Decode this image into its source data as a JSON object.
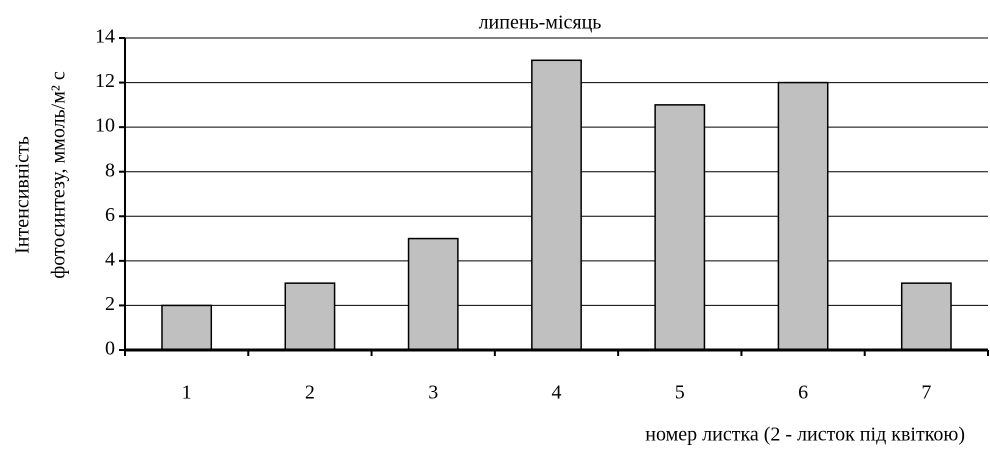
{
  "chart_data": {
    "type": "bar",
    "title": "липень-місяць",
    "y_label_lines": [
      "Інтенсивність",
      "фотосинтезу, ммоль/м² с"
    ],
    "x_label": "номер листка (2 - листок під квіткою)",
    "categories": [
      "1",
      "2",
      "3",
      "4",
      "5",
      "6",
      "7"
    ],
    "values": [
      2,
      3,
      5,
      13,
      11,
      12,
      3
    ],
    "color": "#c0c0c0",
    "ylim": [
      0,
      14
    ],
    "yticks": [
      0,
      2,
      4,
      6,
      8,
      10,
      12,
      14
    ],
    "grid": true
  }
}
